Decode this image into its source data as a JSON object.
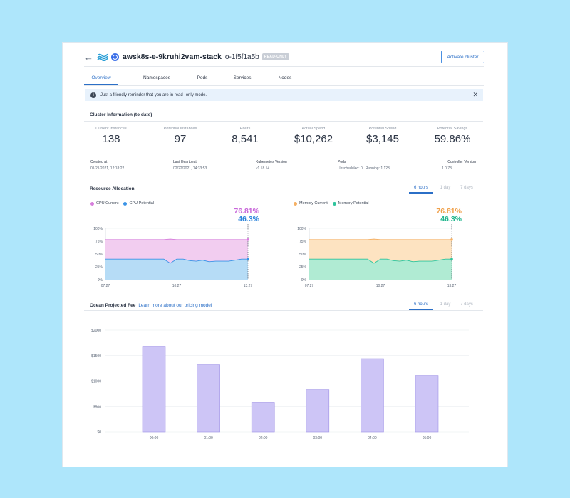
{
  "header": {
    "back_icon": "arrow-left-icon",
    "cluster_name": "awsk8s-e-9kruhi2vam-stack",
    "cluster_id": "o-1f5f1a5b",
    "badge": "READ-ONLY",
    "activate_label": "Activate cluster"
  },
  "tabs": [
    {
      "label": "Overview",
      "active": true
    },
    {
      "label": "Namespaces",
      "active": false
    },
    {
      "label": "Pods",
      "active": false
    },
    {
      "label": "Services",
      "active": false
    },
    {
      "label": "Nodes",
      "active": false
    }
  ],
  "banner": {
    "text": "Just a friendly reminder that you are in read--only mode."
  },
  "cluster_info": {
    "title": "Cluster Information (to date)",
    "stats": [
      {
        "label": "Current Instances",
        "value": "138"
      },
      {
        "label": "Potential Instances",
        "value": "97"
      },
      {
        "label": "Hours",
        "value": "8,541"
      },
      {
        "label": "Actual Spend",
        "value": "$10,262"
      },
      {
        "label": "Potential Spend",
        "value": "$3,145"
      },
      {
        "label": "Potential Savings",
        "value": "59.86%"
      }
    ],
    "meta": {
      "created_label": "Created at",
      "created_value": "01/21/2021, 12:18:22",
      "heartbeat_label": "Last Heartbeat",
      "heartbeat_value": "02/22/2021, 14:33:53",
      "k8s_label": "Kubernetes Version",
      "k8s_value": "v1.18.14",
      "pods_label": "Pods",
      "pods_unscheduled": "Unscheduled: 0",
      "pods_running": "Running: 1,123",
      "controller_label": "Controller Version",
      "controller_value": "1.0.73"
    }
  },
  "resource_allocation": {
    "title": "Resource Allocation",
    "ranges": [
      "6 hours",
      "1 day",
      "7 days"
    ],
    "active_range": "6 hours"
  },
  "fee": {
    "title": "Ocean Projected Fee",
    "link": "Learn more about our pricing model",
    "ranges": [
      "6 hours",
      "1 day",
      "7 days"
    ],
    "active_range": "6 hours"
  },
  "colors": {
    "cpu_current": "#d77fdc",
    "cpu_potential": "#3a93e6",
    "memory_current": "#f5b064",
    "memory_potential": "#2ec49c",
    "bar": "#cdc5f6",
    "accent": "#2b6fc7"
  },
  "chart_data": [
    {
      "type": "area",
      "legend": [
        "CPU Current",
        "CPU Potential"
      ],
      "current_pct": "76.81%",
      "potential_pct": "46.3%",
      "yticks": [
        "100%",
        "75%",
        "50%",
        "25%",
        "0%"
      ],
      "ylim": [
        0,
        100
      ],
      "xticks": [
        "07:27",
        "10:27",
        "13:27"
      ],
      "series": [
        {
          "name": "CPU Current",
          "values": [
            78,
            78,
            78,
            78,
            78,
            78,
            78,
            78,
            78,
            78,
            79,
            78,
            78,
            78,
            78,
            78,
            78,
            78,
            78,
            78,
            78,
            78,
            78
          ]
        },
        {
          "name": "CPU Potential",
          "values": [
            40,
            40,
            40,
            40,
            40,
            40,
            40,
            40,
            40,
            40,
            32,
            40,
            40,
            37,
            36,
            38,
            35,
            36,
            36,
            36,
            38,
            40,
            40
          ]
        }
      ]
    },
    {
      "type": "area",
      "legend": [
        "Memory Current",
        "Memory Potential"
      ],
      "current_pct": "76.81%",
      "potential_pct": "46.3%",
      "yticks": [
        "100%",
        "75%",
        "50%",
        "25%",
        "0%"
      ],
      "ylim": [
        0,
        100
      ],
      "xticks": [
        "07:27",
        "10:27",
        "13:27"
      ],
      "series": [
        {
          "name": "Memory Current",
          "values": [
            78,
            78,
            78,
            78,
            78,
            78,
            78,
            78,
            78,
            78,
            79,
            78,
            78,
            78,
            78,
            78,
            78,
            78,
            78,
            78,
            78,
            78,
            78
          ]
        },
        {
          "name": "Memory Potential",
          "values": [
            40,
            40,
            40,
            40,
            40,
            40,
            40,
            40,
            40,
            40,
            32,
            40,
            40,
            37,
            36,
            38,
            35,
            36,
            36,
            36,
            38,
            40,
            40
          ]
        }
      ]
    },
    {
      "type": "bar",
      "categories": [
        "00:00",
        "01:00",
        "02:00",
        "03:00",
        "04:00",
        "05:00"
      ],
      "values": [
        1670,
        1320,
        580,
        830,
        1440,
        1110
      ],
      "yticks": [
        "$2000",
        "$1500",
        "$1000",
        "$500",
        "$0"
      ],
      "ylim": [
        0,
        2000
      ]
    }
  ]
}
